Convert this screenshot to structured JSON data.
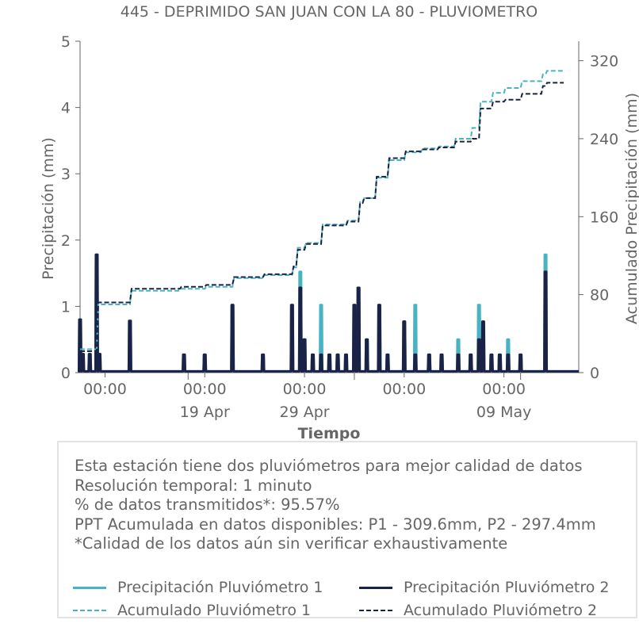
{
  "chart_data": {
    "type": "line",
    "title": "445 - DEPRIMIDO SAN JUAN CON LA 80 - PLUVIOMETRO",
    "xlabel": "Tiempo",
    "ylabel_left": "Precipitación (mm)",
    "ylabel_right": "Acumulado Precipitación (mm)",
    "ylim_left": [
      0,
      5
    ],
    "ylim_right": [
      0,
      340
    ],
    "yticks_left": [
      "0",
      "1",
      "2",
      "3",
      "4",
      "5"
    ],
    "yticks_right": [
      "0",
      "80",
      "160",
      "240",
      "320"
    ],
    "xlim": [
      "2024-04-12T12:00",
      "2024-05-12T12:00"
    ],
    "xticks": [
      {
        "x": "2024-04-14T00:00",
        "label": "00:00",
        "sub": ""
      },
      {
        "x": "2024-04-20T00:00",
        "label": "00:00",
        "sub": "19 Apr"
      },
      {
        "x": "2024-04-26T00:00",
        "label": "00:00",
        "sub": "29 Apr"
      },
      {
        "x": "2024-05-02T00:00",
        "label": "00:00",
        "sub": ""
      },
      {
        "x": "2024-05-08T00:00",
        "label": "00:00",
        "sub": "09 May"
      }
    ],
    "minor_ticks": [
      "2024-04-19T00:00",
      "2024-04-29T00:00",
      "2024-05-09T00:00"
    ],
    "colors": {
      "p1": "#4ab3c3",
      "p2": "#1a2347"
    },
    "series": [
      {
        "name": "Precipitación Pluviómetro 1",
        "style": "solid",
        "axis": "left",
        "points": [
          [
            "2024-04-12T12:00",
            0.8
          ],
          [
            "2024-04-12T16:00",
            0.28
          ],
          [
            "2024-04-13T02:00",
            0.28
          ],
          [
            "2024-04-13T12:00",
            1.78
          ],
          [
            "2024-04-13T16:00",
            0.28
          ],
          [
            "2024-04-15T12:00",
            0.78
          ],
          [
            "2024-04-18T18:00",
            0.27
          ],
          [
            "2024-04-20T00:00",
            0.27
          ],
          [
            "2024-04-21T16:00",
            1.02
          ],
          [
            "2024-04-23T12:00",
            0.27
          ],
          [
            "2024-04-25T06:00",
            1.02
          ],
          [
            "2024-04-25T18:00",
            1.52
          ],
          [
            "2024-04-26T00:00",
            0.5
          ],
          [
            "2024-04-26T12:00",
            0.27
          ],
          [
            "2024-04-27T00:00",
            1.02
          ],
          [
            "2024-04-27T12:00",
            0.27
          ],
          [
            "2024-04-28T00:00",
            0.27
          ],
          [
            "2024-04-28T12:00",
            0.27
          ],
          [
            "2024-04-29T00:00",
            1.02
          ],
          [
            "2024-04-29T06:00",
            1.28
          ],
          [
            "2024-04-29T18:00",
            0.5
          ],
          [
            "2024-04-30T12:00",
            1.02
          ],
          [
            "2024-05-01T00:00",
            0.27
          ],
          [
            "2024-05-02T00:00",
            0.77
          ],
          [
            "2024-05-02T16:00",
            1.02
          ],
          [
            "2024-05-03T12:00",
            0.27
          ],
          [
            "2024-05-04T06:00",
            0.27
          ],
          [
            "2024-05-05T06:00",
            0.5
          ],
          [
            "2024-05-06T00:00",
            0.27
          ],
          [
            "2024-05-06T12:00",
            1.02
          ],
          [
            "2024-05-06T18:00",
            0.5
          ],
          [
            "2024-05-07T06:00",
            0.27
          ],
          [
            "2024-05-07T18:00",
            0.27
          ],
          [
            "2024-05-08T06:00",
            0.5
          ],
          [
            "2024-05-09T00:00",
            0.27
          ],
          [
            "2024-05-10T12:00",
            1.78
          ]
        ]
      },
      {
        "name": "Precipitación Pluviómetro 2",
        "style": "solid",
        "axis": "left",
        "points": [
          [
            "2024-04-12T12:00",
            0.8
          ],
          [
            "2024-04-12T16:00",
            0.28
          ],
          [
            "2024-04-13T02:00",
            0.28
          ],
          [
            "2024-04-13T12:00",
            1.78
          ],
          [
            "2024-04-13T16:00",
            0.28
          ],
          [
            "2024-04-15T12:00",
            0.78
          ],
          [
            "2024-04-18T18:00",
            0.27
          ],
          [
            "2024-04-20T00:00",
            0.27
          ],
          [
            "2024-04-21T16:00",
            1.02
          ],
          [
            "2024-04-23T12:00",
            0.27
          ],
          [
            "2024-04-25T06:00",
            1.02
          ],
          [
            "2024-04-25T18:00",
            1.28
          ],
          [
            "2024-04-26T00:00",
            0.5
          ],
          [
            "2024-04-26T12:00",
            0.27
          ],
          [
            "2024-04-27T00:00",
            0.27
          ],
          [
            "2024-04-27T12:00",
            0.27
          ],
          [
            "2024-04-28T00:00",
            0.27
          ],
          [
            "2024-04-28T12:00",
            0.27
          ],
          [
            "2024-04-29T00:00",
            1.02
          ],
          [
            "2024-04-29T06:00",
            1.28
          ],
          [
            "2024-04-29T18:00",
            0.5
          ],
          [
            "2024-04-30T12:00",
            1.02
          ],
          [
            "2024-05-01T00:00",
            0.27
          ],
          [
            "2024-05-02T00:00",
            0.77
          ],
          [
            "2024-05-02T16:00",
            0.27
          ],
          [
            "2024-05-03T12:00",
            0.27
          ],
          [
            "2024-05-04T06:00",
            0.27
          ],
          [
            "2024-05-05T06:00",
            0.27
          ],
          [
            "2024-05-06T00:00",
            0.27
          ],
          [
            "2024-05-06T12:00",
            0.5
          ],
          [
            "2024-05-06T18:00",
            0.77
          ],
          [
            "2024-05-07T06:00",
            0.27
          ],
          [
            "2024-05-07T18:00",
            0.27
          ],
          [
            "2024-05-08T06:00",
            0.27
          ],
          [
            "2024-05-09T00:00",
            0.27
          ],
          [
            "2024-05-10T12:00",
            1.52
          ]
        ]
      },
      {
        "name": "Acumulado Pluviómetro 1",
        "style": "dashed",
        "axis": "right",
        "points": [
          [
            "2024-04-12T12:00",
            24
          ],
          [
            "2024-04-13T12:00",
            70
          ],
          [
            "2024-04-15T12:00",
            84
          ],
          [
            "2024-04-18T12:00",
            86
          ],
          [
            "2024-04-20T00:00",
            88
          ],
          [
            "2024-04-21T16:00",
            97
          ],
          [
            "2024-04-23T12:00",
            100
          ],
          [
            "2024-04-25T06:00",
            108
          ],
          [
            "2024-04-25T12:00",
            128
          ],
          [
            "2024-04-26T00:00",
            133
          ],
          [
            "2024-04-27T00:00",
            152
          ],
          [
            "2024-04-28T12:00",
            156
          ],
          [
            "2024-04-29T06:00",
            175
          ],
          [
            "2024-04-29T12:00",
            179
          ],
          [
            "2024-04-30T06:00",
            200
          ],
          [
            "2024-05-01T00:00",
            218
          ],
          [
            "2024-05-02T00:00",
            226
          ],
          [
            "2024-05-03T00:00",
            230
          ],
          [
            "2024-05-04T00:00",
            232
          ],
          [
            "2024-05-05T00:00",
            240
          ],
          [
            "2024-05-06T00:00",
            251
          ],
          [
            "2024-05-06T12:00",
            278
          ],
          [
            "2024-05-07T06:00",
            287
          ],
          [
            "2024-05-08T00:00",
            292
          ],
          [
            "2024-05-09T00:00",
            299
          ],
          [
            "2024-05-10T06:00",
            306
          ],
          [
            "2024-05-10T12:00",
            309.6
          ],
          [
            "2024-05-11T12:00",
            309.6
          ]
        ]
      },
      {
        "name": "Acumulado Pluviómetro 2",
        "style": "dashed",
        "axis": "right",
        "points": [
          [
            "2024-04-12T12:00",
            22
          ],
          [
            "2024-04-13T12:00",
            72
          ],
          [
            "2024-04-15T12:00",
            86
          ],
          [
            "2024-04-18T12:00",
            88
          ],
          [
            "2024-04-20T00:00",
            90
          ],
          [
            "2024-04-21T16:00",
            98
          ],
          [
            "2024-04-23T12:00",
            101
          ],
          [
            "2024-04-25T06:00",
            109
          ],
          [
            "2024-04-25T12:00",
            126
          ],
          [
            "2024-04-26T00:00",
            132
          ],
          [
            "2024-04-27T00:00",
            151
          ],
          [
            "2024-04-28T12:00",
            155
          ],
          [
            "2024-04-29T06:00",
            174
          ],
          [
            "2024-04-29T12:00",
            179
          ],
          [
            "2024-04-30T06:00",
            201
          ],
          [
            "2024-05-01T00:00",
            220
          ],
          [
            "2024-05-02T00:00",
            227
          ],
          [
            "2024-05-03T00:00",
            229
          ],
          [
            "2024-05-04T00:00",
            231
          ],
          [
            "2024-05-05T00:00",
            237
          ],
          [
            "2024-05-06T00:00",
            240
          ],
          [
            "2024-05-06T12:00",
            271
          ],
          [
            "2024-05-07T06:00",
            278
          ],
          [
            "2024-05-08T00:00",
            280
          ],
          [
            "2024-05-09T00:00",
            286
          ],
          [
            "2024-05-10T06:00",
            294
          ],
          [
            "2024-05-10T12:00",
            297.4
          ],
          [
            "2024-05-11T12:00",
            297.4
          ]
        ]
      }
    ]
  },
  "info": {
    "lines": [
      "Esta estación tiene dos pluviómetros para mejor calidad de datos",
      "Resolución temporal: 1 minuto",
      "% de datos transmitidos*: 95.57%",
      "PPT Acumulada en datos disponibles: P1 - 309.6mm, P2 - 297.4mm",
      "*Calidad de los datos aún sin verificar exhaustivamente"
    ]
  },
  "legend": {
    "items": [
      {
        "label": "Precipitación Pluviómetro 1",
        "color": "#4ab3c3",
        "style": "solid"
      },
      {
        "label": "Precipitación Pluviómetro 2",
        "color": "#1a2347",
        "style": "solid"
      },
      {
        "label": "Acumulado Pluviómetro 1",
        "color": "#4ab3c3",
        "style": "dashed"
      },
      {
        "label": "Acumulado Pluviómetro 2",
        "color": "#1a2347",
        "style": "dashed"
      }
    ]
  }
}
